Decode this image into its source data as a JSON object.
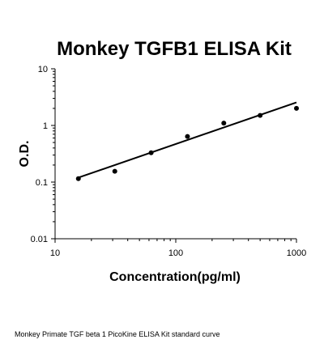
{
  "chart_data": {
    "type": "scatter",
    "title": "Monkey TGFB1 ELISA Kit",
    "xlabel": "Concentration(pg/ml)",
    "ylabel": "O.D.",
    "x_scale": "log",
    "y_scale": "log",
    "xlim": [
      10,
      1000
    ],
    "ylim": [
      0.01,
      10
    ],
    "x_ticks": [
      "10",
      "100",
      "1000"
    ],
    "y_ticks": [
      "0.01",
      "0.1",
      "1",
      "10"
    ],
    "grid": false,
    "points": [
      {
        "x": 15.6,
        "y": 0.115
      },
      {
        "x": 31.25,
        "y": 0.155
      },
      {
        "x": 62.5,
        "y": 0.33
      },
      {
        "x": 125,
        "y": 0.64
      },
      {
        "x": 250,
        "y": 1.1
      },
      {
        "x": 500,
        "y": 1.5
      },
      {
        "x": 1000,
        "y": 2.0
      }
    ],
    "fit_line": {
      "x": [
        15.6,
        1000
      ],
      "y": [
        0.12,
        2.55
      ]
    },
    "colors": {
      "points": "#000000",
      "line": "#000000",
      "axes": "#000000"
    }
  },
  "caption": "Monkey Primate TGF beta 1 PicoKine ELISA Kit standard curve"
}
